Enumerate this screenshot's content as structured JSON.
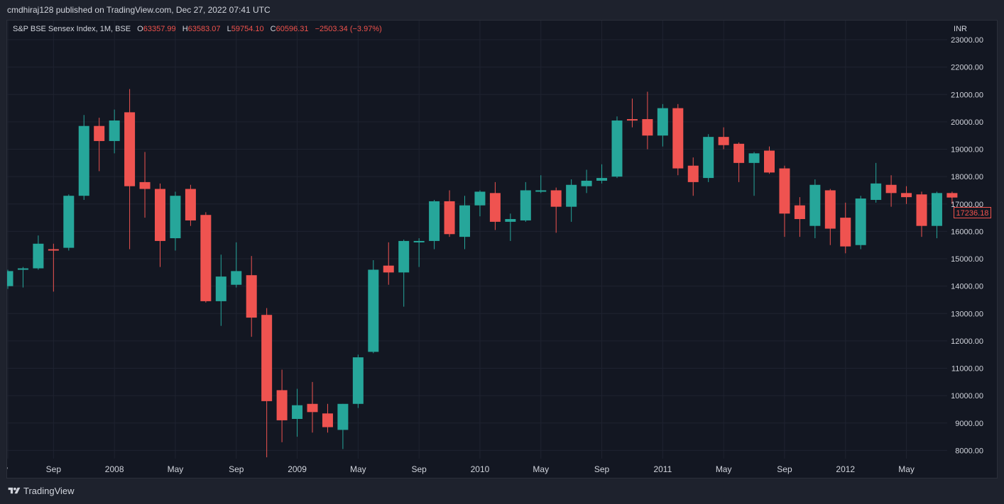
{
  "header": {
    "published_line": "cmdhiraj128 published on TradingView.com, Dec 27, 2022 07:41 UTC"
  },
  "legend": {
    "symbol": "S&P BSE Sensex Index, 1M, BSE",
    "open_label": "O",
    "open": "63357.99",
    "high_label": "H",
    "high": "63583.07",
    "low_label": "L",
    "low": "59754.10",
    "close_label": "C",
    "close": "60596.31",
    "change": "−2503.34 (−3.97%)"
  },
  "currency": "INR",
  "last_price_tag": "17236.18",
  "footer": {
    "brand": "TradingView"
  },
  "colors": {
    "up": "#26a69a",
    "down": "#ef5350",
    "background": "#131722",
    "grid": "#1f2330",
    "text": "#d1d4dc"
  },
  "chart_data": {
    "type": "candlestick",
    "interval": "1M",
    "ylim": [
      7700,
      23700
    ],
    "yticks": [
      8000,
      9000,
      10000,
      11000,
      12000,
      13000,
      14000,
      15000,
      16000,
      17000,
      18000,
      19000,
      20000,
      21000,
      22000,
      23000
    ],
    "ytick_labels": [
      "8000.00",
      "9000.00",
      "10000.00",
      "11000.00",
      "12000.00",
      "13000.00",
      "14000.00",
      "15000.00",
      "16000.00",
      "17000.00",
      "18000.00",
      "19000.00",
      "20000.00",
      "21000.00",
      "22000.00",
      "23000.00"
    ],
    "xtick_labels": [
      {
        "label": "y",
        "index": 0
      },
      {
        "label": "Sep",
        "index": 3
      },
      {
        "label": "2008",
        "index": 7
      },
      {
        "label": "May",
        "index": 11
      },
      {
        "label": "Sep",
        "index": 15
      },
      {
        "label": "2009",
        "index": 19
      },
      {
        "label": "May",
        "index": 23
      },
      {
        "label": "Sep",
        "index": 27
      },
      {
        "label": "2010",
        "index": 31
      },
      {
        "label": "May",
        "index": 35
      },
      {
        "label": "Sep",
        "index": 39
      },
      {
        "label": "2011",
        "index": 43
      },
      {
        "label": "May",
        "index": 47
      },
      {
        "label": "Sep",
        "index": 51
      },
      {
        "label": "2012",
        "index": 55
      },
      {
        "label": "May",
        "index": 59
      }
    ],
    "candles": [
      {
        "o": 14000,
        "h": 14600,
        "l": 13900,
        "c": 14550
      },
      {
        "o": 14600,
        "h": 14700,
        "l": 13950,
        "c": 14650
      },
      {
        "o": 14650,
        "h": 15850,
        "l": 14600,
        "c": 15550
      },
      {
        "o": 15350,
        "h": 15550,
        "l": 13800,
        "c": 15300
      },
      {
        "o": 15400,
        "h": 17350,
        "l": 15300,
        "c": 17300
      },
      {
        "o": 17300,
        "h": 20250,
        "l": 17150,
        "c": 19850
      },
      {
        "o": 19850,
        "h": 20150,
        "l": 18200,
        "c": 19300
      },
      {
        "o": 19300,
        "h": 20450,
        "l": 18850,
        "c": 20050
      },
      {
        "o": 20350,
        "h": 21200,
        "l": 15350,
        "c": 17650
      },
      {
        "o": 17800,
        "h": 18900,
        "l": 16500,
        "c": 17550
      },
      {
        "o": 17550,
        "h": 17750,
        "l": 14700,
        "c": 15650
      },
      {
        "o": 15750,
        "h": 17450,
        "l": 15300,
        "c": 17300
      },
      {
        "o": 17550,
        "h": 17700,
        "l": 16200,
        "c": 16400
      },
      {
        "o": 16600,
        "h": 16700,
        "l": 13400,
        "c": 13450
      },
      {
        "o": 13450,
        "h": 15150,
        "l": 12550,
        "c": 14350
      },
      {
        "o": 14050,
        "h": 15600,
        "l": 13950,
        "c": 14550
      },
      {
        "o": 14400,
        "h": 15100,
        "l": 12150,
        "c": 12850
      },
      {
        "o": 12950,
        "h": 13200,
        "l": 7750,
        "c": 9800
      },
      {
        "o": 10200,
        "h": 10950,
        "l": 8300,
        "c": 9100
      },
      {
        "o": 9150,
        "h": 10250,
        "l": 8500,
        "c": 9650
      },
      {
        "o": 9700,
        "h": 10500,
        "l": 8650,
        "c": 9400
      },
      {
        "o": 9350,
        "h": 9700,
        "l": 8650,
        "c": 8850
      },
      {
        "o": 8750,
        "h": 9700,
        "l": 8050,
        "c": 9700
      },
      {
        "o": 9700,
        "h": 11500,
        "l": 9550,
        "c": 11400
      },
      {
        "o": 11600,
        "h": 14950,
        "l": 11550,
        "c": 14600
      },
      {
        "o": 14750,
        "h": 15600,
        "l": 14050,
        "c": 14500
      },
      {
        "o": 14500,
        "h": 15700,
        "l": 13250,
        "c": 15650
      },
      {
        "o": 15650,
        "h": 15750,
        "l": 14700,
        "c": 15650
      },
      {
        "o": 15650,
        "h": 17150,
        "l": 15350,
        "c": 17100
      },
      {
        "o": 17100,
        "h": 17500,
        "l": 15800,
        "c": 15900
      },
      {
        "o": 15800,
        "h": 17300,
        "l": 15350,
        "c": 16950
      },
      {
        "o": 16950,
        "h": 17500,
        "l": 16550,
        "c": 17450
      },
      {
        "o": 17400,
        "h": 17800,
        "l": 16050,
        "c": 16350
      },
      {
        "o": 16350,
        "h": 16650,
        "l": 15650,
        "c": 16450
      },
      {
        "o": 16400,
        "h": 17800,
        "l": 16350,
        "c": 17500
      },
      {
        "o": 17500,
        "h": 18050,
        "l": 17400,
        "c": 17500
      },
      {
        "o": 17500,
        "h": 17600,
        "l": 15950,
        "c": 16900
      },
      {
        "o": 16900,
        "h": 17900,
        "l": 16350,
        "c": 17700
      },
      {
        "o": 17650,
        "h": 18250,
        "l": 17400,
        "c": 17850
      },
      {
        "o": 17850,
        "h": 18450,
        "l": 17750,
        "c": 17950
      },
      {
        "o": 18000,
        "h": 20200,
        "l": 17950,
        "c": 20050
      },
      {
        "o": 20100,
        "h": 20850,
        "l": 19800,
        "c": 20050
      },
      {
        "o": 20100,
        "h": 21100,
        "l": 19000,
        "c": 19500
      },
      {
        "o": 19500,
        "h": 20650,
        "l": 19100,
        "c": 20500
      },
      {
        "o": 20500,
        "h": 20650,
        "l": 18050,
        "c": 18300
      },
      {
        "o": 18400,
        "h": 18700,
        "l": 17300,
        "c": 17800
      },
      {
        "o": 17950,
        "h": 19550,
        "l": 17800,
        "c": 19450
      },
      {
        "o": 19450,
        "h": 19800,
        "l": 19000,
        "c": 19150
      },
      {
        "o": 19200,
        "h": 19250,
        "l": 17800,
        "c": 18500
      },
      {
        "o": 18500,
        "h": 18900,
        "l": 17300,
        "c": 18850
      },
      {
        "o": 18950,
        "h": 19100,
        "l": 18100,
        "c": 18150
      },
      {
        "o": 18300,
        "h": 18400,
        "l": 15800,
        "c": 16650
      },
      {
        "o": 16950,
        "h": 17250,
        "l": 15800,
        "c": 16450
      },
      {
        "o": 16200,
        "h": 17900,
        "l": 15750,
        "c": 17700
      },
      {
        "o": 17500,
        "h": 17550,
        "l": 15500,
        "c": 16100
      },
      {
        "o": 16500,
        "h": 17050,
        "l": 15200,
        "c": 15450
      },
      {
        "o": 15500,
        "h": 17300,
        "l": 15350,
        "c": 17200
      },
      {
        "o": 17150,
        "h": 18500,
        "l": 17050,
        "c": 17750
      },
      {
        "o": 17700,
        "h": 18050,
        "l": 16900,
        "c": 17400
      },
      {
        "o": 17400,
        "h": 17650,
        "l": 17000,
        "c": 17250
      },
      {
        "o": 17350,
        "h": 17450,
        "l": 15800,
        "c": 16200
      },
      {
        "o": 16200,
        "h": 17450,
        "l": 15750,
        "c": 17400
      },
      {
        "o": 17400,
        "h": 17450,
        "l": 17000,
        "c": 17236.18
      }
    ]
  }
}
